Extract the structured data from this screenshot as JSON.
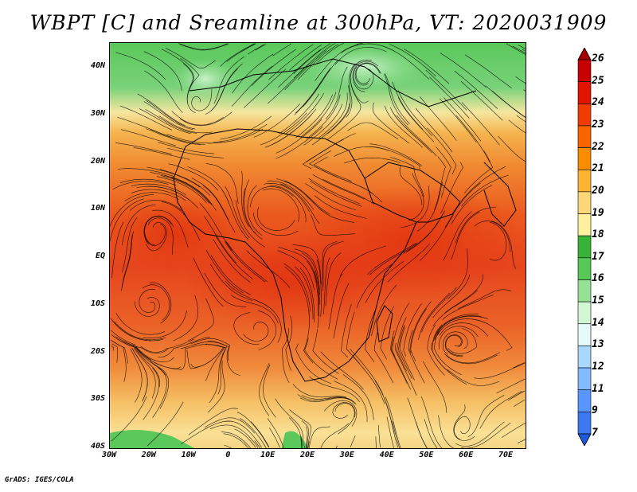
{
  "title": "WBPT [C] and Sreamline at 300hPa, VT: 2020031909",
  "footer": "GrADS: IGES/COLA",
  "map": {
    "lat_labels": [
      "40N",
      "30N",
      "20N",
      "10N",
      "EQ",
      "10S",
      "20S",
      "30S",
      "40S"
    ],
    "lon_labels": [
      "30W",
      "20W",
      "10W",
      "0",
      "10E",
      "20E",
      "30E",
      "40E",
      "50E",
      "60E",
      "70E"
    ]
  },
  "colorbar": {
    "labels": [
      "26",
      "25",
      "24",
      "23",
      "22",
      "21",
      "20",
      "19",
      "18",
      "17",
      "16",
      "15",
      "14",
      "13",
      "12",
      "11",
      "9",
      "7"
    ],
    "colors": [
      "#a50000",
      "#c80000",
      "#e11400",
      "#f03c00",
      "#fa6400",
      "#fa8c00",
      "#fcb432",
      "#fcd778",
      "#fff0a0",
      "#37b437",
      "#55c855",
      "#96e196",
      "#d2f5d2",
      "#e6fafa",
      "#aad7ff",
      "#82b9ff",
      "#5a96ff",
      "#3c78f0",
      "#1e5adc"
    ]
  },
  "colors": {
    "hot": "#e6461e",
    "warm": "#f07828",
    "mild": "#f5b450",
    "cool": "#fae696",
    "green": "#5ac85a",
    "lightgreen": "#96e196"
  }
}
